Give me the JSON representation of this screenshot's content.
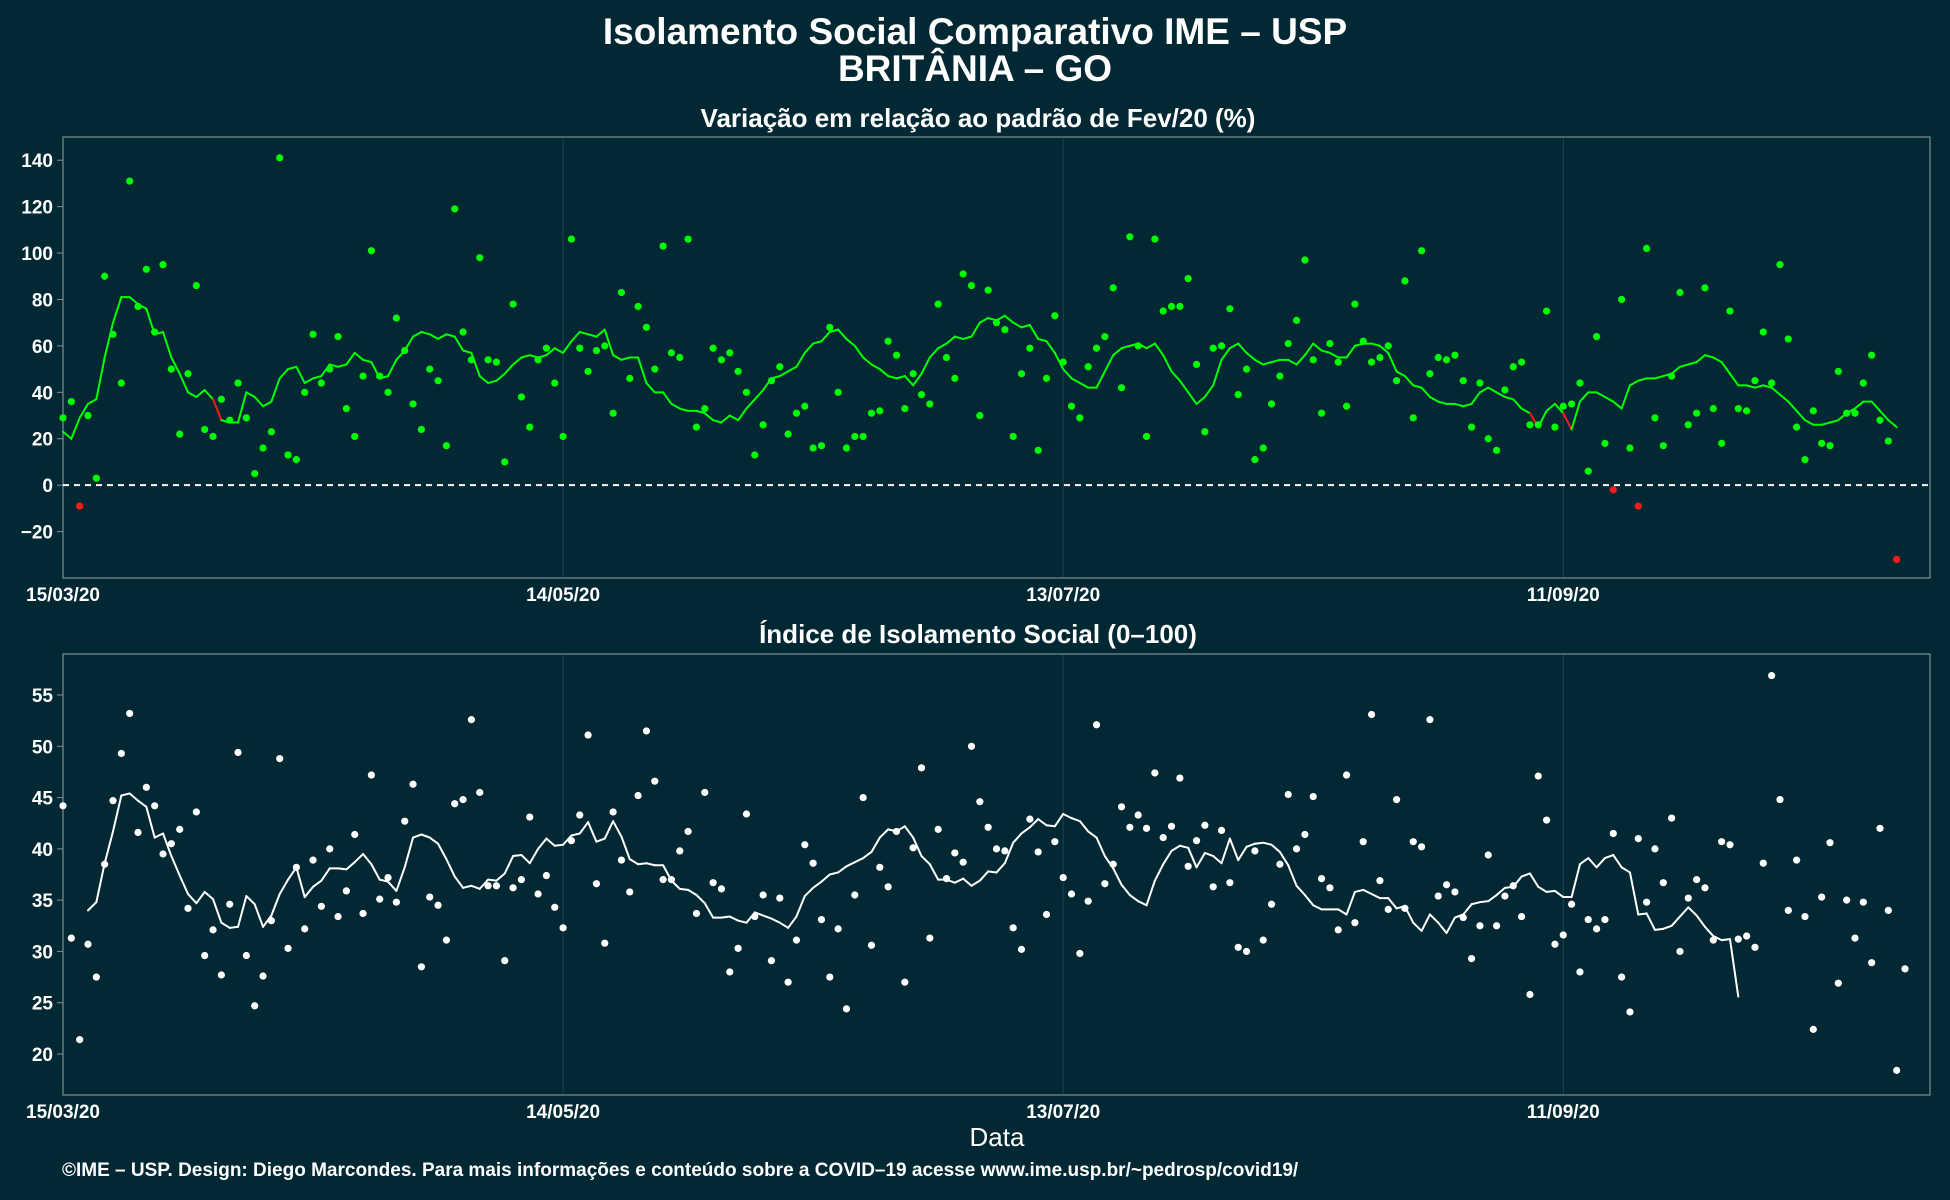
{
  "title_line1": "Isolamento Social Comparativo IME – USP",
  "title_line2": "BRITÂNIA – GO",
  "caption": "©IME – USP. Design: Diego Marcondes. Para mais informações e conteúdo sobre a COVID–19 acesse www.ime.usp.br/~pedrosp/covid19/",
  "colors": {
    "background": "#022833",
    "panel_border": "#7f8f94",
    "grid": "#1d4450",
    "positive": "#00ff00",
    "negative": "#ff1a1a",
    "index_series": "#ffffff"
  },
  "chart_data": [
    {
      "type": "scatter",
      "title": "Variação em relação ao padrão de Fev/20 (%)",
      "xlabel": "",
      "ylabel": "",
      "x_start": "15/03/20",
      "xlim": [
        0,
        224
      ],
      "ylim": [
        -40,
        150
      ],
      "x_ticks": [
        {
          "day": 0,
          "label": "15/03/20"
        },
        {
          "day": 60,
          "label": "14/05/20"
        },
        {
          "day": 120,
          "label": "13/07/20"
        },
        {
          "day": 180,
          "label": "11/09/20"
        }
      ],
      "y_ticks": [
        -20,
        0,
        20,
        40,
        60,
        80,
        100,
        120,
        140
      ],
      "reference_line": 0,
      "series": [
        {
          "name": "",
          "kind": "points",
          "values": [
            29,
            36,
            -9,
            30,
            3,
            90,
            65,
            44,
            131,
            77,
            93,
            66,
            95,
            50,
            22,
            48,
            86,
            24,
            21,
            37,
            28,
            44,
            29,
            5,
            16,
            23,
            141,
            13,
            11,
            40,
            65,
            44,
            50,
            64,
            33,
            21,
            47,
            101,
            47,
            40,
            72,
            58,
            35,
            24,
            50,
            45,
            17,
            119,
            66,
            54,
            98,
            54,
            53,
            10,
            78,
            38,
            25,
            54,
            59,
            44,
            21,
            106,
            59,
            49,
            58,
            60,
            31,
            83,
            46,
            77,
            68,
            50,
            103,
            57,
            55,
            106,
            25,
            33,
            59,
            54,
            57,
            49,
            40,
            13,
            26,
            45,
            51,
            22,
            31,
            34,
            16,
            17,
            68,
            40,
            16,
            21,
            21,
            31,
            32,
            62,
            56,
            33,
            48,
            39,
            35,
            78,
            55,
            46,
            91,
            86,
            30,
            84,
            70,
            67,
            21,
            48,
            59,
            15,
            46,
            73,
            53,
            34,
            29,
            51,
            59,
            64,
            85,
            42,
            107,
            60,
            21,
            106,
            75,
            77,
            77,
            89,
            52,
            23,
            59,
            60,
            76,
            39,
            50,
            11,
            16,
            35,
            47,
            61,
            71,
            97,
            54,
            31,
            61,
            53,
            34,
            78,
            62,
            53,
            55,
            60,
            45,
            88,
            29,
            101,
            48,
            55,
            54,
            56,
            45,
            25,
            44,
            20,
            15,
            41,
            51,
            53,
            26,
            26,
            75,
            25,
            34,
            35,
            44,
            6,
            64,
            18,
            -2,
            80,
            16,
            -9,
            102,
            29,
            17,
            47,
            83,
            26,
            31,
            85,
            33,
            18,
            75,
            33,
            32,
            45,
            66,
            44,
            95,
            63,
            25,
            11,
            32,
            18,
            17,
            49,
            31,
            31,
            44,
            56,
            28,
            19,
            -32
          ]
        },
        {
          "name": "",
          "kind": "line",
          "values": [
            23,
            20,
            29,
            35,
            37,
            55,
            70,
            81,
            81,
            78,
            76,
            65,
            66,
            55,
            48,
            40,
            38,
            41,
            37,
            28,
            27,
            27,
            40,
            38,
            34,
            36,
            46,
            50,
            51,
            44,
            46,
            47,
            52,
            51,
            52,
            57,
            54,
            53,
            46,
            47,
            54,
            58,
            64,
            66,
            65,
            63,
            65,
            64,
            58,
            57,
            47,
            44,
            45,
            48,
            52,
            55,
            56,
            55,
            56,
            59,
            57,
            62,
            66,
            65,
            64,
            67,
            56,
            54,
            55,
            55,
            44,
            40,
            40,
            35,
            33,
            32,
            32,
            31,
            28,
            27,
            30,
            28,
            33,
            37,
            41,
            46,
            47,
            49,
            51,
            57,
            61,
            62,
            66,
            67,
            63,
            60,
            55,
            52,
            50,
            47,
            46,
            47,
            43,
            48,
            55,
            59,
            61,
            64,
            63,
            64,
            70,
            72,
            71,
            73,
            70,
            68,
            69,
            63,
            62,
            57,
            50,
            46,
            44,
            42,
            42,
            49,
            56,
            59,
            60,
            61,
            59,
            61,
            56,
            49,
            45,
            40,
            35,
            38,
            43,
            54,
            59,
            61,
            57,
            54,
            52,
            53,
            54,
            54,
            52,
            56,
            61,
            58,
            57,
            55,
            55,
            60,
            61,
            61,
            60,
            57,
            49,
            47,
            43,
            42,
            38,
            36,
            35,
            35,
            34,
            35,
            40,
            42,
            40,
            38,
            37,
            33,
            31,
            25,
            32,
            35,
            31,
            24,
            36,
            40,
            40,
            38,
            36,
            33,
            43,
            45,
            46,
            46,
            47,
            48,
            51,
            52,
            53,
            56,
            55,
            53,
            48,
            43,
            43,
            42,
            43,
            42,
            39,
            36,
            32,
            28,
            26,
            26,
            27,
            28,
            31,
            33,
            36,
            36,
            32,
            28,
            25
          ]
        }
      ]
    },
    {
      "type": "scatter",
      "title": "Índice de Isolamento Social (0–100)",
      "xlabel": "Data",
      "ylabel": "",
      "x_start": "15/03/20",
      "xlim": [
        0,
        224
      ],
      "ylim": [
        16,
        59
      ],
      "x_ticks": [
        {
          "day": 0,
          "label": "15/03/20"
        },
        {
          "day": 60,
          "label": "14/05/20"
        },
        {
          "day": 120,
          "label": "13/07/20"
        },
        {
          "day": 180,
          "label": "11/09/20"
        }
      ],
      "y_ticks": [
        20,
        25,
        30,
        35,
        40,
        45,
        50,
        55
      ],
      "series": [
        {
          "name": "",
          "kind": "points",
          "values": [
            44.2,
            31.3,
            21.4,
            30.7,
            27.5,
            38.5,
            44.7,
            49.3,
            53.2,
            41.6,
            46,
            44.2,
            39.5,
            40.5,
            41.9,
            34.2,
            43.6,
            29.6,
            32.1,
            27.7,
            34.6,
            49.4,
            29.6,
            24.7,
            27.6,
            33,
            48.8,
            30.3,
            38.2,
            32.2,
            38.9,
            34.4,
            40,
            33.4,
            35.9,
            41.4,
            33.7,
            47.2,
            35.1,
            37.2,
            34.8,
            42.7,
            46.3,
            28.5,
            35.3,
            34.5,
            31.1,
            44.4,
            44.8,
            52.6,
            45.5,
            36.4,
            36.4,
            29.1,
            36.2,
            37,
            43.1,
            35.6,
            37.4,
            34.3,
            32.3,
            40.8,
            43.3,
            51.1,
            36.6,
            30.8,
            43.6,
            38.9,
            35.8,
            45.2,
            51.5,
            46.6,
            37,
            37,
            39.8,
            41.7,
            33.7,
            45.5,
            36.7,
            36.1,
            28,
            30.3,
            43.4,
            33.4,
            35.5,
            29.1,
            35.2,
            27,
            31.1,
            40.4,
            38.6,
            33.1,
            27.5,
            32.2,
            24.4,
            35.5,
            45,
            30.6,
            38.2,
            36.3,
            41.7,
            27,
            40.1,
            47.9,
            31.3,
            41.9,
            37.1,
            39.6,
            38.7,
            50,
            44.6,
            42.1,
            40,
            39.8,
            32.3,
            30.2,
            42.9,
            39.7,
            33.6,
            40.7,
            37.2,
            35.6,
            29.8,
            34.9,
            52.1,
            36.6,
            38.5,
            44.1,
            42.1,
            43.3,
            42,
            47.4,
            41.1,
            42.2,
            46.9,
            38.3,
            40.8,
            42.3,
            36.3,
            41.8,
            36.7,
            30.4,
            30,
            39.8,
            31.1,
            34.6,
            38.5,
            45.3,
            40,
            41.4,
            45.1,
            37.1,
            36.2,
            32.1,
            47.2,
            32.8,
            40.7,
            53.1,
            36.9,
            34.1,
            44.8,
            34.2,
            40.7,
            40.2,
            52.6,
            35.4,
            36.5,
            35.8,
            33.3,
            29.3,
            32.5,
            39.4,
            32.5,
            35.4,
            36.4,
            33.4,
            25.8,
            47.1,
            42.8,
            30.7,
            31.6,
            34.6,
            28,
            33.1,
            32.2,
            33.1,
            41.5,
            27.5,
            24.1,
            41,
            34.8,
            40,
            36.7,
            43,
            30,
            35.2,
            37,
            36.2,
            31.1,
            40.7,
            40.4,
            31.2,
            31.5,
            30.4,
            38.6,
            56.9,
            44.8,
            34,
            38.9,
            33.4,
            22.4,
            35.3,
            40.6,
            26.9,
            35,
            31.3,
            34.8,
            28.9,
            42,
            34,
            18.4,
            28.3
          ]
        },
        {
          "name": "",
          "kind": "line",
          "start_day": 3,
          "values": [
            34,
            34.8,
            38.6,
            41.7,
            45.2,
            45.4,
            44.7,
            44.1,
            41.1,
            41.5,
            39.3,
            37.4,
            35.6,
            34.7,
            35.8,
            35.1,
            32.8,
            32.3,
            32.4,
            35.4,
            34.6,
            32.4,
            33.5,
            35.6,
            37,
            38.2,
            35.3,
            36.3,
            36.9,
            38.1,
            38.1,
            38,
            38.7,
            39.5,
            38.5,
            37,
            36.8,
            35.9,
            38.2,
            41.1,
            41.4,
            41.1,
            40.5,
            39,
            37.3,
            36.2,
            36.4,
            36.1,
            37,
            36.9,
            37.6,
            39.3,
            39.4,
            38.6,
            40,
            41,
            40.3,
            40.4,
            41.3,
            41.5,
            42.6,
            40.7,
            41,
            42.7,
            41.2,
            39,
            38.5,
            38.6,
            38.4,
            38.4,
            36.9,
            36.1,
            36,
            35.5,
            34.7,
            33.3,
            33.3,
            33.4,
            33,
            32.8,
            33.8,
            33.5,
            33.2,
            32.8,
            32.3,
            33.4,
            35.4,
            36.2,
            36.8,
            37.5,
            37.7,
            38.3,
            38.7,
            39.1,
            39.7,
            41.1,
            41.9,
            41.7,
            42.2,
            41.1,
            39.3,
            38.5,
            37,
            37,
            36.7,
            37.1,
            36.4,
            36.9,
            37.8,
            37.7,
            38.6,
            40.6,
            41.5,
            42.1,
            42.9,
            42.3,
            42.2,
            43.4,
            43,
            42.7,
            41.7,
            41.1,
            39.3,
            38.1,
            36.5,
            35.5,
            34.9,
            34.5,
            36.9,
            38.5,
            39.8,
            40.3,
            40.1,
            38.2,
            39.6,
            39.3,
            38.6,
            41,
            38.9,
            40.2,
            40.5,
            40.6,
            40.4,
            39.7,
            38.4,
            36.4,
            35.5,
            34.5,
            34.1,
            34.1,
            34.1,
            33.6,
            35.8,
            36,
            35.6,
            35.2,
            35.2,
            34.2,
            34.4,
            32.8,
            32,
            33.6,
            32.8,
            31.8,
            33.3,
            33.6,
            34.6,
            34.8,
            34.9,
            35.5,
            36.2,
            36.3,
            37.3,
            37.6,
            36.3,
            35.8,
            35.9,
            35.3,
            35.3,
            38.5,
            39.1,
            38.2,
            39.1,
            39.4,
            38.2,
            37.7,
            33.6,
            33.7,
            32.1,
            32.2,
            32.5,
            33.4,
            34.3,
            33.5,
            32.4,
            31.5,
            31.1,
            31.2,
            25.6
          ]
        }
      ]
    }
  ]
}
